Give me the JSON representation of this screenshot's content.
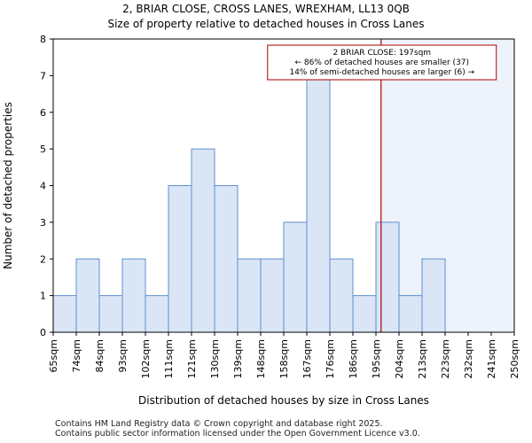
{
  "chart_data": {
    "type": "bar",
    "title": "2, BRIAR CLOSE, CROSS LANES, WREXHAM, LL13 0QB",
    "subtitle": "Size of property relative to detached houses in Cross Lanes",
    "xlabel": "Distribution of detached houses by size in Cross Lanes",
    "ylabel": "Number of detached properties",
    "bin_edges": [
      65,
      74,
      84,
      93,
      102,
      111,
      121,
      130,
      139,
      148,
      158,
      167,
      176,
      186,
      195,
      204,
      213,
      223,
      232,
      241,
      250
    ],
    "tick_labels": [
      "65sqm",
      "74sqm",
      "84sqm",
      "93sqm",
      "102sqm",
      "111sqm",
      "121sqm",
      "130sqm",
      "139sqm",
      "148sqm",
      "158sqm",
      "167sqm",
      "176sqm",
      "186sqm",
      "195sqm",
      "204sqm",
      "213sqm",
      "223sqm",
      "232sqm",
      "241sqm",
      "250sqm"
    ],
    "values": [
      1,
      2,
      1,
      2,
      1,
      4,
      5,
      4,
      2,
      2,
      3,
      7,
      2,
      1,
      3,
      1,
      2,
      0,
      0,
      0
    ],
    "ylim": [
      0,
      8
    ],
    "yticks": [
      0,
      1,
      2,
      3,
      4,
      5,
      6,
      7,
      8
    ],
    "grid": false,
    "marker": {
      "value": 197,
      "color": "#aa0000",
      "annotation": [
        "2 BRIAR CLOSE: 197sqm",
        "← 86% of detached houses are smaller (37)",
        "14% of semi-detached houses are larger (6) →"
      ]
    },
    "colors": {
      "bar_fill": "#dae6f6",
      "bar_edge": "#5f8fd0",
      "highlight_bg": "#eef2fb"
    }
  },
  "footer": {
    "line1": "Contains HM Land Registry data © Crown copyright and database right 2025.",
    "line2": "Contains public sector information licensed under the Open Government Licence v3.0."
  }
}
